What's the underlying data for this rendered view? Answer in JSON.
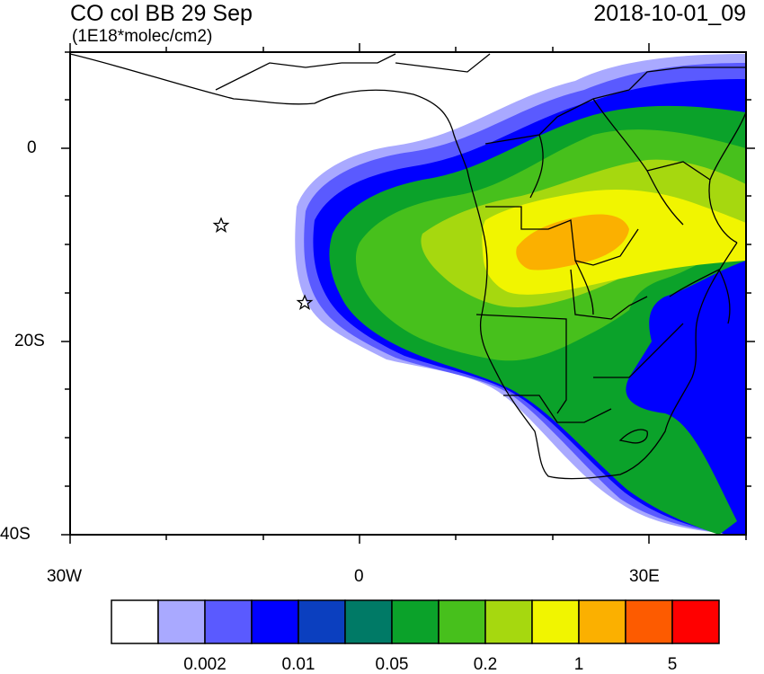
{
  "title_left": "CO col BB 29 Sep",
  "units": "(1E18*molec/cm2)",
  "title_right": "2018-10-01_09",
  "lat_labels": [
    "0",
    "20S",
    "40S"
  ],
  "lon_labels": [
    "30W",
    "0",
    "30E"
  ],
  "colorbar": {
    "colors": [
      "#ffffff",
      "#a9a9ff",
      "#5a5aff",
      "#0000ff",
      "#0b3fbf",
      "#007a66",
      "#0ba22a",
      "#47c01c",
      "#a6d80f",
      "#f1f500",
      "#fbb000",
      "#fd5b00",
      "#ff0000"
    ],
    "labels": [
      "0.002",
      "0.01",
      "0.05",
      "0.2",
      "1",
      "5"
    ]
  },
  "markers": [
    "star",
    "star"
  ],
  "colors": {
    "frame": "#000000",
    "border": "#000000"
  }
}
